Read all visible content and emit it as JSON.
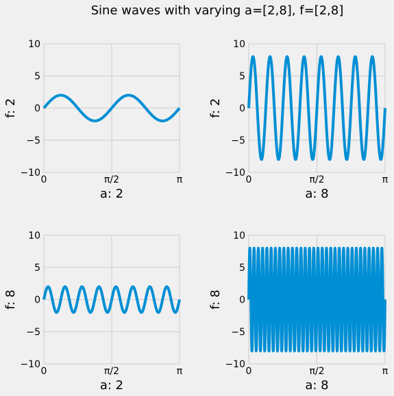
{
  "figure": {
    "title": "Sine waves with varying a=[2,8], f=[2,8]"
  },
  "chart_data": [
    {
      "type": "line",
      "amplitude": 2,
      "frequency": 2,
      "x_range": [
        0,
        3.14159
      ],
      "ylim": [
        -10,
        10
      ],
      "xticks": [
        0,
        1.5708,
        3.14159
      ],
      "xtick_labels": [
        "0",
        "π/2",
        "π"
      ],
      "yticks": [
        -10,
        -5,
        0,
        5,
        10
      ],
      "ytick_labels": [
        "−10",
        "−5",
        "0",
        "5",
        "10"
      ],
      "xlabel": "a: 2",
      "ylabel": "f: 2",
      "grid": true,
      "color": "#008fd5",
      "series": [
        {
          "function": "2*sin(2*2*x)"
        }
      ]
    },
    {
      "type": "line",
      "amplitude": 8,
      "frequency": 2,
      "x_range": [
        0,
        3.14159
      ],
      "ylim": [
        -10,
        10
      ],
      "xticks": [
        0,
        1.5708,
        3.14159
      ],
      "xtick_labels": [
        "0",
        "π/2",
        "π"
      ],
      "yticks": [
        -10,
        -5,
        0,
        5,
        10
      ],
      "ytick_labels": [
        "−10",
        "−5",
        "0",
        "5",
        "10"
      ],
      "xlabel": "a: 8",
      "ylabel": "f: 2",
      "grid": true,
      "color": "#008fd5",
      "series": [
        {
          "function": "8*sin(8*2*x)"
        }
      ]
    },
    {
      "type": "line",
      "amplitude": 2,
      "frequency": 8,
      "x_range": [
        0,
        3.14159
      ],
      "ylim": [
        -10,
        10
      ],
      "xticks": [
        0,
        1.5708,
        3.14159
      ],
      "xtick_labels": [
        "0",
        "π/2",
        "π"
      ],
      "yticks": [
        -10,
        -5,
        0,
        5,
        10
      ],
      "ytick_labels": [
        "−10",
        "−5",
        "0",
        "5",
        "10"
      ],
      "xlabel": "a: 2",
      "ylabel": "f: 8",
      "grid": true,
      "color": "#008fd5",
      "series": [
        {
          "function": "2*sin(2*8*x)"
        }
      ]
    },
    {
      "type": "line",
      "amplitude": 8,
      "frequency": 8,
      "x_range": [
        0,
        3.14159
      ],
      "ylim": [
        -10,
        10
      ],
      "xticks": [
        0,
        1.5708,
        3.14159
      ],
      "xtick_labels": [
        "0",
        "π/2",
        "π"
      ],
      "yticks": [
        -10,
        -5,
        0,
        5,
        10
      ],
      "ytick_labels": [
        "−10",
        "−5",
        "0",
        "5",
        "10"
      ],
      "xlabel": "a: 8",
      "ylabel": "f: 8",
      "grid": true,
      "color": "#008fd5",
      "series": [
        {
          "function": "8*sin(8*8*x)"
        }
      ]
    }
  ]
}
